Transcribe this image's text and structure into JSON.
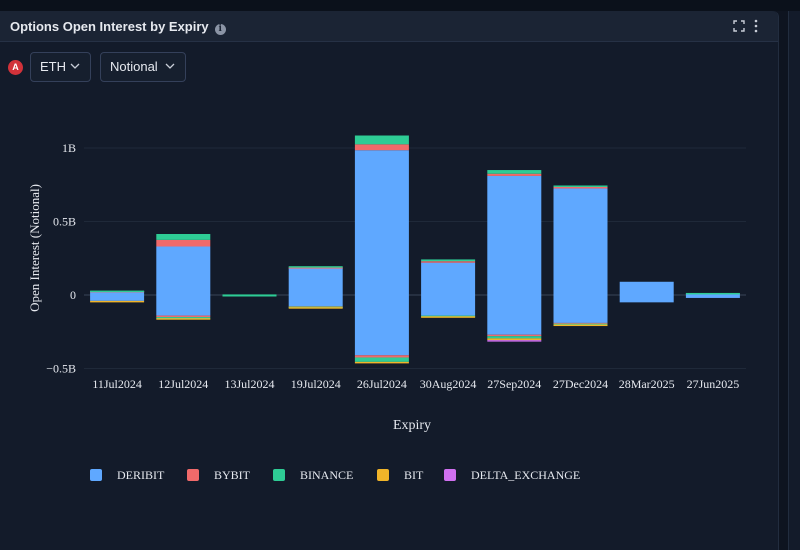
{
  "panel": {
    "title": "Options Open Interest by Expiry",
    "info_icon": "i",
    "badge": "A",
    "asset_select": "ETH",
    "metric_select": "Notional"
  },
  "colors": {
    "DERIBIT": "#5fa8ff",
    "BYBIT": "#f06a6a",
    "BINANCE": "#2ecc95",
    "BIT": "#f0b429",
    "DELTA_EXCHANGE": "#d070f0"
  },
  "chart_data": {
    "type": "bar",
    "stacked": true,
    "xlabel": "Expiry",
    "ylabel": "Open Interest (Notional)",
    "ylim": [
      -0.5,
      1.1
    ],
    "yticks": [
      {
        "value": 1,
        "label": "1B"
      },
      {
        "value": 0.5,
        "label": "0.5B"
      },
      {
        "value": 0,
        "label": "0"
      },
      {
        "value": -0.5,
        "label": "−0.5B"
      }
    ],
    "categories": [
      "11Jul2024",
      "12Jul2024",
      "13Jul2024",
      "19Jul2024",
      "26Jul2024",
      "30Aug2024",
      "27Sep2024",
      "27Dec2024",
      "28Mar2025",
      "27Jun2025"
    ],
    "series": [
      {
        "name": "DERIBIT",
        "pos": [
          0.025,
          0.33,
          0.0,
          0.185,
          0.985,
          0.22,
          0.81,
          0.725,
          0.09,
          0.01
        ],
        "neg": [
          -0.04,
          -0.14,
          0.0,
          -0.075,
          -0.41,
          -0.14,
          -0.27,
          -0.19,
          -0.05,
          -0.02
        ]
      },
      {
        "name": "BYBIT",
        "pos": [
          0.003,
          0.045,
          0.0,
          0.005,
          0.04,
          0.01,
          0.015,
          0.01,
          0.0,
          0.0
        ],
        "neg": [
          0.0,
          -0.01,
          0.0,
          -0.003,
          -0.015,
          0.0,
          -0.01,
          -0.005,
          0.0,
          0.0
        ]
      },
      {
        "name": "BINANCE",
        "pos": [
          0.002,
          0.04,
          0.004,
          0.006,
          0.06,
          0.012,
          0.025,
          0.01,
          0.0,
          0.004
        ],
        "neg": [
          0.0,
          -0.008,
          -0.004,
          -0.005,
          -0.03,
          -0.005,
          -0.015,
          -0.006,
          0.0,
          0.0
        ]
      },
      {
        "name": "BIT",
        "pos": [
          0.0,
          0.0,
          0.0,
          0.0,
          0.0,
          0.0,
          0.0,
          0.0,
          0.0,
          0.0
        ],
        "neg": [
          -0.002,
          -0.01,
          0.0,
          -0.005,
          -0.01,
          -0.005,
          -0.012,
          -0.006,
          0.0,
          0.0
        ]
      },
      {
        "name": "DELTA_EXCHANGE",
        "pos": [
          0.0,
          0.0,
          0.0,
          0.0,
          0.0,
          0.0,
          0.0,
          0.0,
          0.0,
          0.0
        ],
        "neg": [
          0.0,
          0.0,
          0.0,
          0.0,
          0.0,
          0.0,
          -0.003,
          0.0,
          0.0,
          0.0
        ]
      }
    ],
    "legend": [
      "DERIBIT",
      "BYBIT",
      "BINANCE",
      "BIT",
      "DELTA_EXCHANGE"
    ],
    "legend_position": "bottom-left",
    "grid": true
  }
}
